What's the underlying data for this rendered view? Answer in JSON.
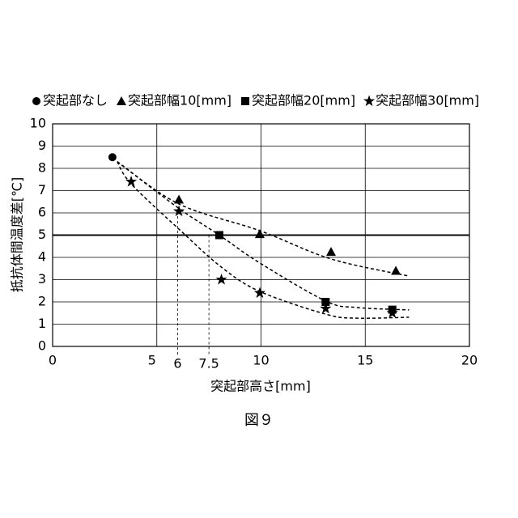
{
  "chart_data": {
    "type": "scatter",
    "x_label": "突起部高さ[mm]",
    "y_label": "抵抗体間温度差[℃]",
    "caption": "図９",
    "xlim": [
      0,
      20
    ],
    "xticks": [
      0,
      5,
      10,
      15,
      20
    ],
    "ylim": [
      0,
      10
    ],
    "yticks": [
      0,
      1,
      2,
      3,
      4,
      5,
      6,
      7,
      8,
      9,
      10
    ],
    "grid": true,
    "highlight_y": 5,
    "reference_lines": [
      {
        "x": 6,
        "y": 6.07,
        "label": "6"
      },
      {
        "x": 7.5,
        "y": 5,
        "label": "7.5"
      }
    ],
    "legend": "top",
    "series": [
      {
        "name": "突起部なし",
        "marker": "circle",
        "color": "#000000",
        "x": [
          2.87
        ],
        "values": [
          8.5
        ]
      },
      {
        "name": "突起部幅10[mm]",
        "marker": "triangle",
        "color": "#000000",
        "x": [
          6.06,
          9.94,
          13.36,
          16.47
        ],
        "values": [
          6.6,
          5.05,
          4.25,
          3.4
        ],
        "trend": {
          "x": [
            3.1,
            6.06,
            9.94,
            13.36,
            17.1
          ],
          "y": [
            8.3,
            6.4,
            5.2,
            3.93,
            3.16
          ]
        }
      },
      {
        "name": "突起部幅20[mm]",
        "marker": "square",
        "color": "#000000",
        "x": [
          8.0,
          13.1,
          16.3
        ],
        "values": [
          5.0,
          2.0,
          1.65
        ],
        "trend": {
          "x": [
            3.1,
            6.06,
            8.0,
            9.94,
            13.1,
            14.56,
            17.1
          ],
          "y": [
            8.3,
            6.2,
            5.0,
            3.75,
            2.04,
            1.75,
            1.64
          ]
        }
      },
      {
        "name": "突起部幅30[mm]",
        "marker": "star",
        "color": "#000000",
        "x": [
          3.77,
          6.06,
          8.1,
          9.94,
          13.1,
          16.3
        ],
        "values": [
          7.4,
          6.07,
          3.0,
          2.4,
          1.7,
          1.5
        ],
        "trend": {
          "x": [
            3.1,
            3.77,
            6.06,
            8.1,
            9.94,
            13.1,
            14.56,
            17.1
          ],
          "y": [
            8.3,
            7.3,
            5.27,
            3.56,
            2.47,
            1.45,
            1.27,
            1.31
          ]
        }
      }
    ]
  }
}
